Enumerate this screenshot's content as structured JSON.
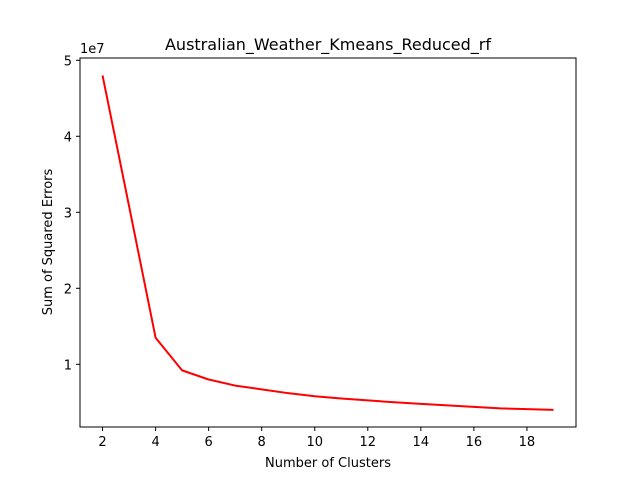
{
  "chart_data": {
    "type": "line",
    "title": "Australian_Weather_Kmeans_Reduced_rf",
    "xlabel": "Number of Clusters",
    "ylabel": "Sum of Squared Errors",
    "y_scale_label": "1e7",
    "xlim": [
      1.15,
      19.85
    ],
    "ylim": [
      1.75,
      50.3
    ],
    "x_ticks": [
      2,
      4,
      6,
      8,
      10,
      12,
      14,
      16,
      18
    ],
    "y_ticks": [
      1,
      2,
      3,
      4,
      5
    ],
    "grid": false,
    "series": [
      {
        "color": "#ff0000",
        "x": [
          2,
          3,
          4,
          5,
          6,
          7,
          8,
          9,
          10,
          11,
          12,
          13,
          14,
          15,
          16,
          17,
          18,
          19
        ],
        "y": [
          48.0,
          30.8,
          13.5,
          9.2,
          8.0,
          7.2,
          6.7,
          6.2,
          5.8,
          5.5,
          5.25,
          5.0,
          4.8,
          4.6,
          4.4,
          4.2,
          4.1,
          4.0
        ]
      }
    ]
  }
}
